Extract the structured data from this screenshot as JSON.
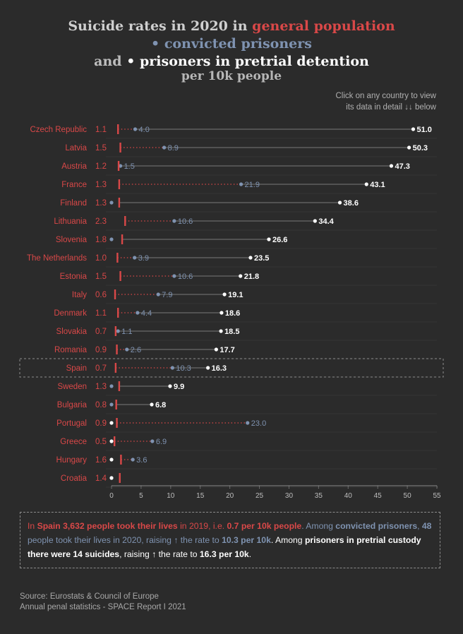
{
  "title": {
    "line1_a": "Suicide rates in 2020 in",
    "line1_b": "general population",
    "line2_bullet": "•",
    "line2": "convicted prisoners",
    "line3_a": "and",
    "line3_bullet": "•",
    "line3_b": "prisoners in pretrial detention",
    "line4": "per 10k people"
  },
  "hint": {
    "line1": "Click on any country to view",
    "line2": "its data in detail ↓↓ below"
  },
  "colors": {
    "general": "#d94848",
    "convicted": "#7f93b1",
    "pretrial": "#ffffff",
    "background": "#2b2b2b"
  },
  "chart_data": {
    "type": "scatter",
    "subtype": "dot-plot",
    "xlim": [
      0,
      55
    ],
    "xticks": [
      "0",
      "5",
      "10",
      "15",
      "20",
      "25",
      "30",
      "35",
      "40",
      "45",
      "50",
      "55"
    ],
    "series": [
      {
        "name": "general population",
        "marker": "vertical tick"
      },
      {
        "name": "convicted prisoners",
        "marker": "dot"
      },
      {
        "name": "prisoners in pretrial detention",
        "marker": "dot"
      }
    ],
    "selected_country": "Spain",
    "rows": [
      {
        "country": "Czech Republic",
        "general": 1.1,
        "general_label": "1.1",
        "convicted": 4.0,
        "convicted_label": "4.0",
        "pretrial": 51.0,
        "pretrial_label": "51.0"
      },
      {
        "country": "Latvia",
        "general": 1.5,
        "general_label": "1.5",
        "convicted": 8.9,
        "convicted_label": "8.9",
        "pretrial": 50.3,
        "pretrial_label": "50.3"
      },
      {
        "country": "Austria",
        "general": 1.2,
        "general_label": "1.2",
        "convicted": 1.5,
        "convicted_label": "1.5",
        "pretrial": 47.3,
        "pretrial_label": "47.3"
      },
      {
        "country": "France",
        "general": 1.3,
        "general_label": "1.3",
        "convicted": 21.9,
        "convicted_label": "21.9",
        "pretrial": 43.1,
        "pretrial_label": "43.1"
      },
      {
        "country": "Finland",
        "general": 1.3,
        "general_label": "1.3",
        "convicted": 0.0,
        "convicted_label": "",
        "pretrial": 38.6,
        "pretrial_label": "38.6"
      },
      {
        "country": "Lithuania",
        "general": 2.3,
        "general_label": "2.3",
        "convicted": 10.6,
        "convicted_label": "10.6",
        "pretrial": 34.4,
        "pretrial_label": "34.4"
      },
      {
        "country": "Slovenia",
        "general": 1.8,
        "general_label": "1.8",
        "convicted": 0.0,
        "convicted_label": "",
        "pretrial": 26.6,
        "pretrial_label": "26.6"
      },
      {
        "country": "The Netherlands",
        "general": 1.0,
        "general_label": "1.0",
        "convicted": 3.9,
        "convicted_label": "3.9",
        "pretrial": 23.5,
        "pretrial_label": "23.5"
      },
      {
        "country": "Estonia",
        "general": 1.5,
        "general_label": "1.5",
        "convicted": 10.6,
        "convicted_label": "10.6",
        "pretrial": 21.8,
        "pretrial_label": "21.8"
      },
      {
        "country": "Italy",
        "general": 0.6,
        "general_label": "0.6",
        "convicted": 7.9,
        "convicted_label": "7.9",
        "pretrial": 19.1,
        "pretrial_label": "19.1"
      },
      {
        "country": "Denmark",
        "general": 1.1,
        "general_label": "1.1",
        "convicted": 4.4,
        "convicted_label": "4.4",
        "pretrial": 18.6,
        "pretrial_label": "18.6"
      },
      {
        "country": "Slovakia",
        "general": 0.7,
        "general_label": "0.7",
        "convicted": 1.1,
        "convicted_label": "1.1",
        "pretrial": 18.5,
        "pretrial_label": "18.5"
      },
      {
        "country": "Romania",
        "general": 0.9,
        "general_label": "0.9",
        "convicted": 2.6,
        "convicted_label": "2.6",
        "pretrial": 17.7,
        "pretrial_label": "17.7"
      },
      {
        "country": "Spain",
        "general": 0.7,
        "general_label": "0.7",
        "convicted": 10.3,
        "convicted_label": "10.3",
        "pretrial": 16.3,
        "pretrial_label": "16.3"
      },
      {
        "country": "Sweden",
        "general": 1.3,
        "general_label": "1.3",
        "convicted": 0.0,
        "convicted_label": "",
        "pretrial": 9.9,
        "pretrial_label": "9.9"
      },
      {
        "country": "Bulgaria",
        "general": 0.8,
        "general_label": "0.8",
        "convicted": 0.0,
        "convicted_label": "",
        "pretrial": 6.8,
        "pretrial_label": "6.8"
      },
      {
        "country": "Portugal",
        "general": 0.9,
        "general_label": "0.9",
        "convicted": 23.0,
        "convicted_label": "23.0",
        "pretrial": 0.0,
        "pretrial_label": ""
      },
      {
        "country": "Greece",
        "general": 0.5,
        "general_label": "0.5",
        "convicted": 6.9,
        "convicted_label": "6.9",
        "pretrial": 0.0,
        "pretrial_label": ""
      },
      {
        "country": "Hungary",
        "general": 1.6,
        "general_label": "1.6",
        "convicted": 3.6,
        "convicted_label": "3.6",
        "pretrial": 0.0,
        "pretrial_label": ""
      },
      {
        "country": "Croatia",
        "general": 1.4,
        "general_label": "1.4",
        "convicted": 0.0,
        "convicted_label": "",
        "pretrial": 0.0,
        "pretrial_label": ""
      }
    ]
  },
  "info": {
    "p1": "In",
    "p2": "Spain 3,632 people took their lives",
    "p3": "in 2019, i.e.",
    "p4": "0.7 per 10k people",
    "p5": ". Among",
    "p6": "convicted prisoners",
    "p7": ",",
    "p8": "48",
    "p9": "people took their lives in 2020, raising ↑ the rate to",
    "p10": "10.3 per 10k",
    "p11": ". Among",
    "p12": "prisoners in pretrial custody there were 14 suicides",
    "p13": ", raising ↑ the rate to",
    "p14": "16.3 per 10k",
    "p15": "."
  },
  "source": {
    "line1": "Source: Eurostats & Council of Europe",
    "line2": "Annual penal statistics - SPACE Report I 2021"
  }
}
